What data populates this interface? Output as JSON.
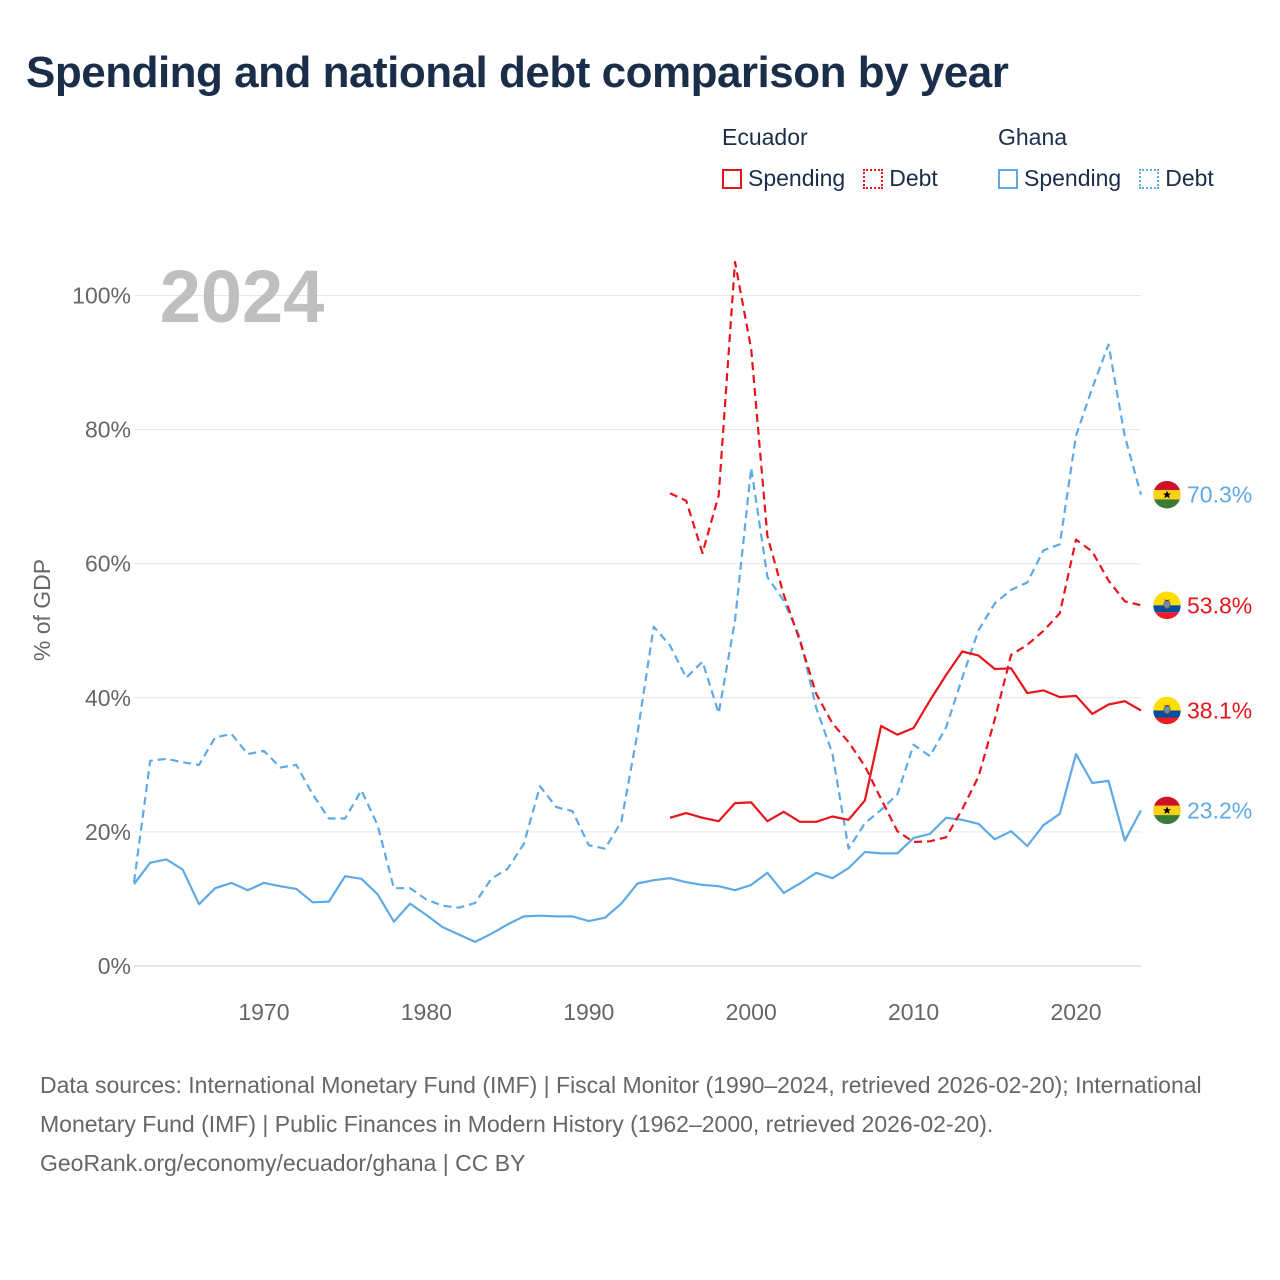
{
  "title": "Spending and national debt comparison by year",
  "legend": {
    "groups": [
      {
        "name": "Ecuador",
        "spending_label": "Spending",
        "debt_label": "Debt",
        "color": "#e8141b"
      },
      {
        "name": "Ghana",
        "spending_label": "Spending",
        "debt_label": "Debt",
        "color": "#5ea9e6"
      }
    ]
  },
  "year_watermark": "2024",
  "footer": {
    "sources": "Data sources: International Monetary Fund (IMF) | Fiscal Monitor (1990–2024, retrieved 2026-02-20); International Monetary Fund (IMF) | Public Finances in Modern History (1962–2000, retrieved 2026-02-20).",
    "credit": "GeoRank.org/economy/ecuador/ghana | CC BY"
  },
  "chart_data": {
    "type": "line",
    "ylabel": "% of GDP",
    "xlabel": "",
    "xlim": [
      1962,
      2024
    ],
    "ylim": [
      0,
      105
    ],
    "yticks": [
      0,
      20,
      40,
      60,
      80,
      100
    ],
    "ytick_labels": [
      "0%",
      "20%",
      "40%",
      "60%",
      "80%",
      "100%"
    ],
    "xticks": [
      1970,
      1980,
      1990,
      2000,
      2010,
      2020
    ],
    "xtick_labels": [
      "1970",
      "1980",
      "1990",
      "2000",
      "2010",
      "2020"
    ],
    "grid": true,
    "series": [
      {
        "name": "Ghana Debt",
        "country": "Ghana",
        "metric": "Debt",
        "color": "#5ea9e6",
        "dash": true,
        "flag": "ghana",
        "end_label": "70.3%",
        "x": [
          1962,
          1963,
          1964,
          1965,
          1966,
          1967,
          1968,
          1969,
          1970,
          1971,
          1972,
          1973,
          1974,
          1975,
          1976,
          1977,
          1978,
          1979,
          1980,
          1981,
          1982,
          1983,
          1984,
          1985,
          1986,
          1987,
          1988,
          1989,
          1990,
          1991,
          1992,
          1993,
          1994,
          1995,
          1996,
          1997,
          1998,
          1999,
          2000,
          2001,
          2002,
          2003,
          2004,
          2005,
          2006,
          2007,
          2008,
          2009,
          2010,
          2011,
          2012,
          2013,
          2014,
          2015,
          2016,
          2017,
          2018,
          2019,
          2020,
          2021,
          2022,
          2023,
          2024
        ],
        "values": [
          12.5,
          30.6,
          30.9,
          30.4,
          30.0,
          34.1,
          34.6,
          31.6,
          32.1,
          29.6,
          30.0,
          25.6,
          22.0,
          22.0,
          26.2,
          21.0,
          11.6,
          11.6,
          9.9,
          9.0,
          8.7,
          9.4,
          13.0,
          14.5,
          18.2,
          26.8,
          23.7,
          23.1,
          18.0,
          17.5,
          21.5,
          34.7,
          50.6,
          47.8,
          43.0,
          45.4,
          37.7,
          51.5,
          74.3,
          58.0,
          54.5,
          49.0,
          38.5,
          31.7,
          17.5,
          21.3,
          23.3,
          25.6,
          33.0,
          31.3,
          35.6,
          43.0,
          50.1,
          54.1,
          56.1,
          57.2,
          62.0,
          62.9,
          79.1,
          86.2,
          92.7,
          79.0,
          70.3
        ]
      },
      {
        "name": "Ghana Spending",
        "country": "Ghana",
        "metric": "Spending",
        "color": "#5ea9e6",
        "dash": false,
        "flag": "ghana",
        "end_label": "23.2%",
        "x": [
          1962,
          1963,
          1964,
          1965,
          1966,
          1967,
          1968,
          1969,
          1970,
          1971,
          1972,
          1973,
          1974,
          1975,
          1976,
          1977,
          1978,
          1979,
          1980,
          1981,
          1982,
          1983,
          1984,
          1985,
          1986,
          1987,
          1988,
          1989,
          1990,
          1991,
          1992,
          1993,
          1994,
          1995,
          1996,
          1997,
          1998,
          1999,
          2000,
          2001,
          2002,
          2003,
          2004,
          2005,
          2006,
          2007,
          2008,
          2009,
          2010,
          2011,
          2012,
          2013,
          2014,
          2015,
          2016,
          2017,
          2018,
          2019,
          2020,
          2021,
          2022,
          2023,
          2024
        ],
        "values": [
          12.2,
          15.4,
          15.9,
          14.4,
          9.2,
          11.6,
          12.4,
          11.3,
          12.4,
          11.9,
          11.5,
          9.5,
          9.6,
          13.4,
          13.0,
          10.7,
          6.6,
          9.3,
          7.6,
          5.8,
          4.7,
          3.6,
          4.8,
          6.2,
          7.4,
          7.5,
          7.4,
          7.4,
          6.7,
          7.2,
          9.3,
          12.3,
          12.8,
          13.1,
          12.5,
          12.1,
          11.9,
          11.3,
          12.1,
          13.9,
          10.9,
          12.3,
          13.9,
          13.1,
          14.6,
          17.0,
          16.8,
          16.8,
          19.1,
          19.7,
          22.1,
          21.8,
          21.2,
          18.9,
          20.1,
          17.9,
          21.0,
          22.7,
          31.6,
          27.3,
          27.6,
          18.7,
          23.2
        ]
      },
      {
        "name": "Ecuador Debt",
        "country": "Ecuador",
        "metric": "Debt",
        "color": "#e8141b",
        "dash": true,
        "flag": "ecuador",
        "end_label": "53.8%",
        "x": [
          1995,
          1996,
          1997,
          1998,
          1999,
          2000,
          2001,
          2002,
          2003,
          2004,
          2005,
          2006,
          2007,
          2008,
          2009,
          2010,
          2011,
          2012,
          2013,
          2014,
          2015,
          2016,
          2017,
          2018,
          2019,
          2020,
          2021,
          2022,
          2023,
          2024
        ],
        "values": [
          70.5,
          69.4,
          61.6,
          70.2,
          105.0,
          92.0,
          64.1,
          55.4,
          48.5,
          40.6,
          36.2,
          33.4,
          29.8,
          24.9,
          20.1,
          18.5,
          18.6,
          19.2,
          23.4,
          28.3,
          36.8,
          46.4,
          47.9,
          50.0,
          52.6,
          63.6,
          61.8,
          57.5,
          54.4,
          53.8
        ]
      },
      {
        "name": "Ecuador Spending",
        "country": "Ecuador",
        "metric": "Spending",
        "color": "#e8141b",
        "dash": false,
        "flag": "ecuador",
        "end_label": "38.1%",
        "x": [
          1995,
          1996,
          1997,
          1998,
          1999,
          2000,
          2001,
          2002,
          2003,
          2004,
          2005,
          2006,
          2007,
          2008,
          2009,
          2010,
          2011,
          2012,
          2013,
          2014,
          2015,
          2016,
          2017,
          2018,
          2019,
          2020,
          2021,
          2022,
          2023,
          2024
        ],
        "values": [
          22.1,
          22.8,
          22.1,
          21.6,
          24.3,
          24.4,
          21.6,
          23.0,
          21.5,
          21.5,
          22.3,
          21.8,
          24.7,
          35.8,
          34.5,
          35.5,
          39.6,
          43.4,
          46.9,
          46.3,
          44.3,
          44.4,
          40.7,
          41.1,
          40.1,
          40.3,
          37.6,
          39.0,
          39.5,
          38.1
        ]
      }
    ]
  }
}
